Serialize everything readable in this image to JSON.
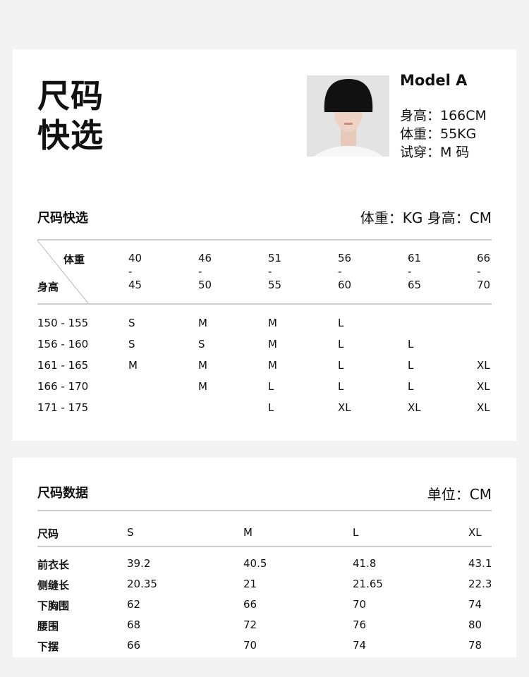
{
  "hero": {
    "title_line1": "尺码",
    "title_line2": "快选"
  },
  "model": {
    "name": "Model A",
    "height": "身高：166CM",
    "weight": "体重：55KG",
    "tried": "试穿：M 码"
  },
  "quick": {
    "title": "尺码快选",
    "units": "体重：KG 身高：CM",
    "corner_top": "体重",
    "corner_bottom": "身高",
    "weights": [
      [
        "40",
        "-",
        "45"
      ],
      [
        "46",
        "-",
        "50"
      ],
      [
        "51",
        "-",
        "55"
      ],
      [
        "56",
        "-",
        "60"
      ],
      [
        "61",
        "-",
        "65"
      ],
      [
        "66",
        "-",
        "70"
      ]
    ],
    "rows": [
      {
        "height": "150 - 155",
        "sizes": [
          "S",
          "M",
          "M",
          "L",
          "",
          ""
        ]
      },
      {
        "height": "156 - 160",
        "sizes": [
          "S",
          "S",
          "M",
          "L",
          "L",
          ""
        ]
      },
      {
        "height": "161 - 165",
        "sizes": [
          "M",
          "M",
          "M",
          "L",
          "L",
          "XL"
        ]
      },
      {
        "height": "166 - 170",
        "sizes": [
          "",
          "M",
          "L",
          "L",
          "L",
          "XL"
        ]
      },
      {
        "height": "171 - 175",
        "sizes": [
          "",
          "",
          "L",
          "XL",
          "XL",
          "XL"
        ]
      }
    ]
  },
  "data": {
    "title": "尺码数据",
    "units": "单位：CM",
    "headers": [
      "尺码",
      "S",
      "M",
      "L",
      "XL"
    ],
    "rows": [
      [
        "前衣长",
        "39.2",
        "40.5",
        "41.8",
        "43.1"
      ],
      [
        "侧缝长",
        "20.35",
        "21",
        "21.65",
        "22.3"
      ],
      [
        "下胸围",
        "62",
        "66",
        "70",
        "74"
      ],
      [
        "腰围",
        "68",
        "72",
        "76",
        "80"
      ],
      [
        "下摆",
        "66",
        "70",
        "74",
        "78"
      ]
    ]
  }
}
